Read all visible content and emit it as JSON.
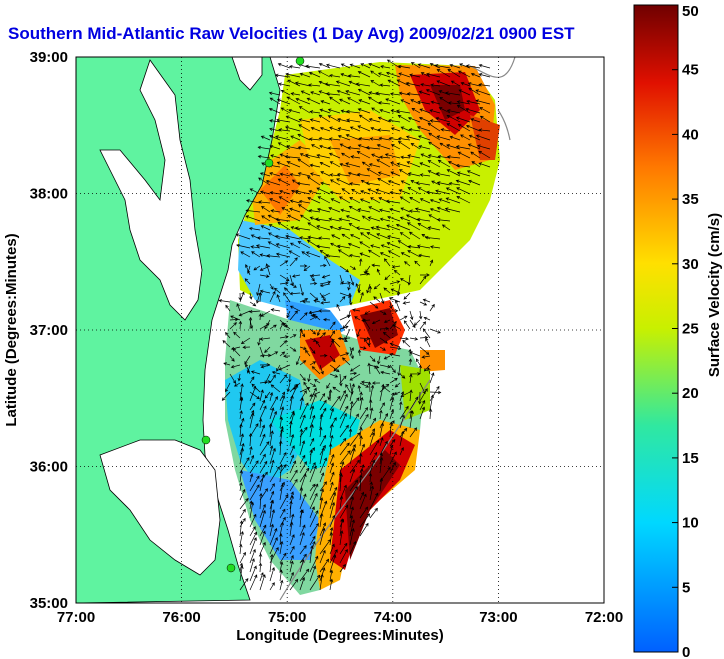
{
  "title": "Southern Mid-Atlantic Raw Velocities (1 Day Avg) 2009/02/21 0900 EST",
  "xlabel": "Longitude (Degrees:Minutes)",
  "ylabel": "Latitude (Degrees:Minutes)",
  "x_ticks": [
    "77:00",
    "76:00",
    "75:00",
    "74:00",
    "73:00",
    "72:00"
  ],
  "y_ticks": [
    "39:00",
    "38:00",
    "37:00",
    "36:00",
    "35:00"
  ],
  "colorbar": {
    "label": "Surface Velocity (cm/s)",
    "ticks": [
      "0",
      "5",
      "10",
      "15",
      "20",
      "25",
      "30",
      "35",
      "40",
      "45",
      "50"
    ]
  },
  "colors": {
    "land": "#5ff3a0",
    "title": "#0000e0",
    "station": "#22dd22"
  },
  "chart_data": {
    "type": "heatmap",
    "x_range": [
      -77,
      -72
    ],
    "y_range": [
      35,
      39
    ],
    "value_range": [
      0,
      50
    ],
    "grid": true
  }
}
